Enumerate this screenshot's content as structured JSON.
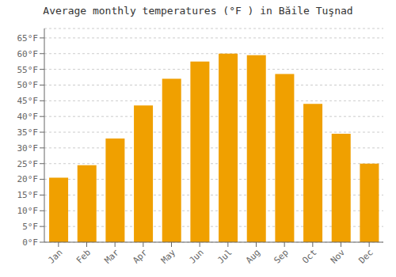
{
  "chart_data": {
    "type": "bar",
    "title": "Average monthly temperatures (°F ) in Băile Tuşnad",
    "categories": [
      "Jan",
      "Feb",
      "Mar",
      "Apr",
      "May",
      "Jun",
      "Jul",
      "Aug",
      "Sep",
      "Oct",
      "Nov",
      "Dec"
    ],
    "values": [
      20.5,
      24.5,
      33.0,
      43.5,
      52.0,
      57.5,
      60.0,
      59.5,
      53.5,
      44.0,
      34.5,
      25.0
    ],
    "color": "#F0A000",
    "ylim": [
      0,
      68
    ],
    "yticks": [
      {
        "value": 0,
        "label": "0°F"
      },
      {
        "value": 5,
        "label": "5°F"
      },
      {
        "value": 10,
        "label": "10°F"
      },
      {
        "value": 15,
        "label": "15°F"
      },
      {
        "value": 20,
        "label": "20°F"
      },
      {
        "value": 25,
        "label": "25°F"
      },
      {
        "value": 30,
        "label": "30°F"
      },
      {
        "value": 35,
        "label": "35°F"
      },
      {
        "value": 40,
        "label": "40°F"
      },
      {
        "value": 45,
        "label": "45°F"
      },
      {
        "value": 50,
        "label": "50°F"
      },
      {
        "value": 55,
        "label": "55°F"
      },
      {
        "value": 60,
        "label": "60°F"
      },
      {
        "value": 65,
        "label": "65°F"
      }
    ],
    "grid": true
  }
}
